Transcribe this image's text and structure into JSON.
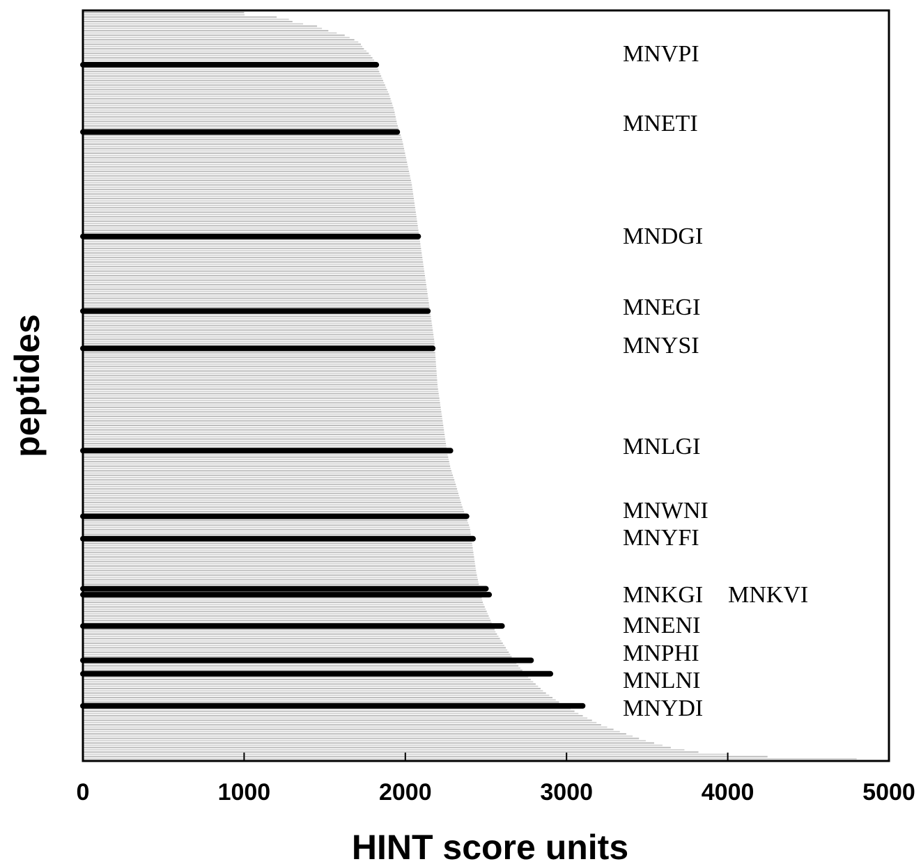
{
  "chart_data": {
    "type": "bar",
    "orientation": "horizontal",
    "xlabel": "HINT score units",
    "ylabel": "peptides",
    "xlim": [
      0,
      5000
    ],
    "xticks": [
      0,
      1000,
      2000,
      3000,
      4000,
      5000
    ],
    "grid": false,
    "legend": "none",
    "bar_count": 330,
    "background_curve": {
      "description_units": "HINT score by peptide rank fraction (0 = top of plot)",
      "points": [
        [
          0.0,
          1000
        ],
        [
          0.003,
          1000
        ],
        [
          0.006,
          1200
        ],
        [
          0.01,
          1300
        ],
        [
          0.013,
          1300
        ],
        [
          0.018,
          1450
        ],
        [
          0.023,
          1500
        ],
        [
          0.03,
          1620
        ],
        [
          0.036,
          1680
        ],
        [
          0.041,
          1720
        ],
        [
          0.048,
          1740
        ],
        [
          0.056,
          1780
        ],
        [
          0.065,
          1810
        ],
        [
          0.075,
          1830
        ],
        [
          0.09,
          1860
        ],
        [
          0.11,
          1900
        ],
        [
          0.13,
          1930
        ],
        [
          0.15,
          1950
        ],
        [
          0.17,
          1980
        ],
        [
          0.2,
          2010
        ],
        [
          0.23,
          2040
        ],
        [
          0.26,
          2060
        ],
        [
          0.29,
          2080
        ],
        [
          0.32,
          2100
        ],
        [
          0.35,
          2120
        ],
        [
          0.38,
          2140
        ],
        [
          0.41,
          2160
        ],
        [
          0.44,
          2180
        ],
        [
          0.47,
          2190
        ],
        [
          0.5,
          2200
        ],
        [
          0.53,
          2220
        ],
        [
          0.56,
          2240
        ],
        [
          0.59,
          2260
        ],
        [
          0.61,
          2280
        ],
        [
          0.63,
          2310
        ],
        [
          0.66,
          2350
        ],
        [
          0.69,
          2400
        ],
        [
          0.72,
          2420
        ],
        [
          0.75,
          2440
        ],
        [
          0.77,
          2460
        ],
        [
          0.79,
          2480
        ],
        [
          0.81,
          2520
        ],
        [
          0.83,
          2560
        ],
        [
          0.85,
          2620
        ],
        [
          0.87,
          2680
        ],
        [
          0.89,
          2760
        ],
        [
          0.91,
          2860
        ],
        [
          0.925,
          2960
        ],
        [
          0.94,
          3080
        ],
        [
          0.955,
          3220
        ],
        [
          0.965,
          3350
        ],
        [
          0.975,
          3480
        ],
        [
          0.985,
          3650
        ],
        [
          0.992,
          3850
        ],
        [
          0.997,
          4250
        ],
        [
          1.0,
          4800
        ]
      ]
    },
    "highlighted": [
      {
        "label": "MNVPI",
        "value": 1820,
        "rank": 0.07
      },
      {
        "label": "MNETI",
        "value": 1950,
        "rank": 0.16
      },
      {
        "label": "MNDGI",
        "value": 2080,
        "rank": 0.3
      },
      {
        "label": "MNEGI",
        "value": 2140,
        "rank": 0.4
      },
      {
        "label": "MNYSI",
        "value": 2170,
        "rank": 0.45
      },
      {
        "label": "MNLGI",
        "value": 2280,
        "rank": 0.587
      },
      {
        "label": "MNWNI",
        "value": 2380,
        "rank": 0.675
      },
      {
        "label": "MNYFI",
        "value": 2420,
        "rank": 0.705
      },
      {
        "label": "MNKGI",
        "value": 2500,
        "rank": 0.772
      },
      {
        "label": "MNKVI",
        "value": 2520,
        "rank": 0.78
      },
      {
        "label": "MNENI",
        "value": 2600,
        "rank": 0.822
      },
      {
        "label": "MNPHI",
        "value": 2780,
        "rank": 0.868
      },
      {
        "label": "MNLNI",
        "value": 2900,
        "rank": 0.886
      },
      {
        "label": "MNYDI",
        "value": 3100,
        "rank": 0.929
      }
    ]
  }
}
